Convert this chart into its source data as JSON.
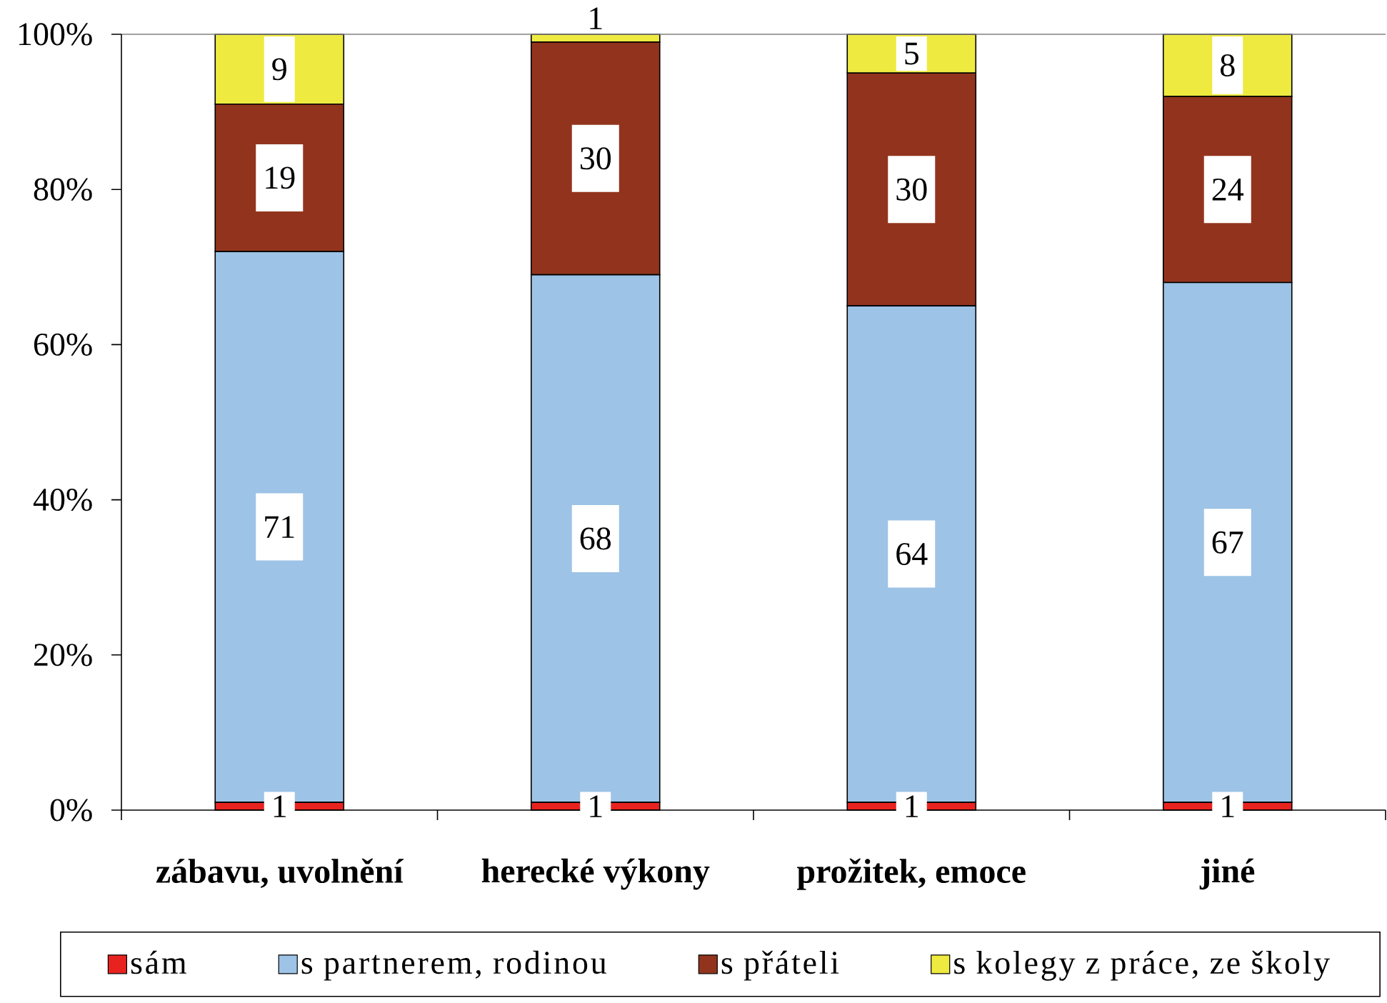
{
  "chart_data": {
    "type": "bar",
    "stacked": true,
    "categories": [
      "zábavu, uvolnění",
      "herecké výkony",
      "prožitek, emoce",
      "jiné"
    ],
    "ylim": [
      0,
      100
    ],
    "yticks": [
      {
        "value": 0,
        "label": "0%"
      },
      {
        "value": 20,
        "label": "20%"
      },
      {
        "value": 40,
        "label": "40%"
      },
      {
        "value": 60,
        "label": "60%"
      },
      {
        "value": 80,
        "label": "80%"
      },
      {
        "value": 100,
        "label": "100%"
      }
    ],
    "series": [
      {
        "name": "sám",
        "color": "#e8231f",
        "values": [
          1,
          1,
          1,
          1
        ]
      },
      {
        "name": "s partnerem, rodinou",
        "color": "#9dc3e6",
        "values": [
          71,
          68,
          64,
          67
        ]
      },
      {
        "name": "s přáteli",
        "color": "#92341d",
        "values": [
          19,
          30,
          30,
          24
        ]
      },
      {
        "name": "s kolegy z práce, ze školy",
        "color": "#eeea40",
        "values": [
          9,
          1,
          5,
          8
        ]
      }
    ],
    "data_labels": true,
    "legend": "bottom"
  }
}
